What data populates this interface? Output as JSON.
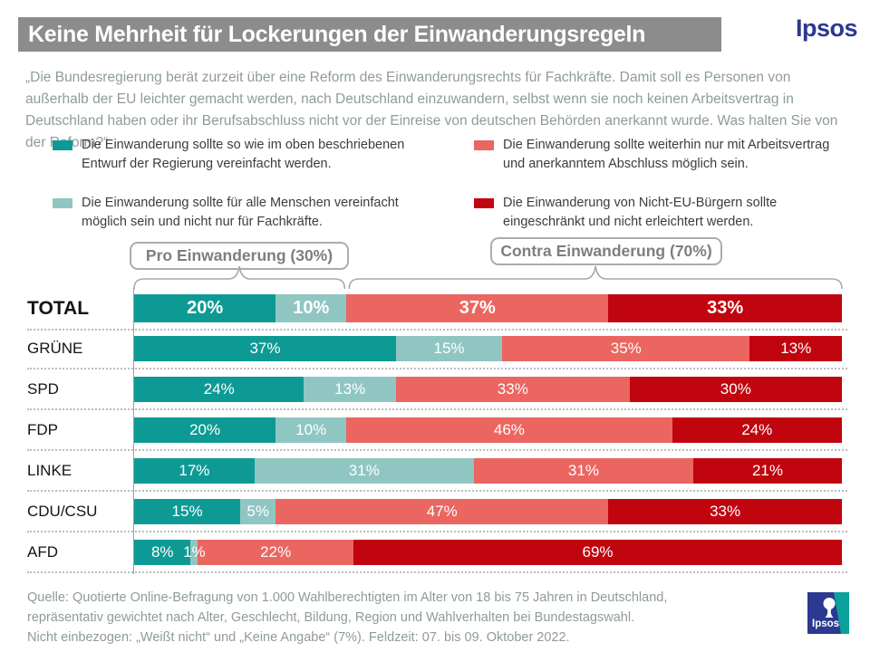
{
  "header": {
    "title": "Keine Mehrheit für Lockerungen der Einwanderungsregeln",
    "brand": "Ipsos"
  },
  "question": "„Die Bundesregierung berät zurzeit über eine Reform des Einwanderungsrechts für Fachkräfte. Damit soll es Personen von außerhalb der EU leichter gemacht werden, nach Deutschland einzuwandern, selbst wenn sie noch keinen Arbeitsvertrag in Deutschland haben oder ihr Berufsabschluss nicht vor der Einreise von deutschen Behörden anerkannt wurde. Was halten Sie von der Reform?“",
  "legend": {
    "items": [
      {
        "label": "Die Einwanderung sollte so wie im oben beschriebenen Entwurf der Regierung vereinfacht werden.",
        "color": "#0E9A94"
      },
      {
        "label": "Die Einwanderung sollte für alle Menschen vereinfacht möglich sein und nicht nur für Fachkräfte.",
        "color": "#90C6C2"
      },
      {
        "label": "Die Einwanderung sollte weiterhin nur mit Arbeitsvertrag und anerkanntem Abschluss möglich sein.",
        "color": "#EB6660"
      },
      {
        "label": "Die Einwanderung von Nicht-EU-Bürgern sollte eingeschränkt und nicht erleichtert werden.",
        "color": "#C1050F"
      }
    ]
  },
  "groups": {
    "pro": {
      "label": "Pro Einwanderung (30%)",
      "share_pct": 30
    },
    "contra": {
      "label": "Contra Einwanderung (70%)",
      "share_pct": 70
    }
  },
  "chart_data": {
    "type": "bar",
    "stacked": true,
    "unit": "%",
    "categories": [
      "TOTAL",
      "GRÜNE",
      "SPD",
      "FDP",
      "LINKE",
      "CDU/CSU",
      "AFD"
    ],
    "series": [
      {
        "name": "Die Einwanderung sollte so wie im oben beschriebenen Entwurf der Regierung vereinfacht werden.",
        "color": "#0E9A94",
        "values": [
          20,
          37,
          24,
          20,
          17,
          15,
          8
        ]
      },
      {
        "name": "Die Einwanderung sollte für alle Menschen vereinfacht möglich sein und nicht nur für Fachkräfte.",
        "color": "#90C6C2",
        "values": [
          10,
          15,
          13,
          10,
          31,
          5,
          1
        ]
      },
      {
        "name": "Die Einwanderung sollte weiterhin nur mit Arbeitsvertrag und anerkanntem Abschluss möglich sein.",
        "color": "#EB6660",
        "values": [
          37,
          35,
          33,
          46,
          31,
          47,
          22
        ]
      },
      {
        "name": "Die Einwanderung von Nicht-EU-Bürgern sollte eingeschränkt und nicht erleichtert werden.",
        "color": "#C1050F",
        "values": [
          33,
          13,
          30,
          24,
          21,
          33,
          69
        ]
      }
    ],
    "xlim": [
      0,
      100
    ],
    "grid": false,
    "legend_position": "top"
  },
  "source": {
    "lines": [
      "Quelle: Quotierte Online-Befragung von 1.000 Wahlberechtigten im Alter von 18 bis 75 Jahren in Deutschland,",
      "repräsentativ gewichtet nach Alter, Geschlecht, Bildung, Region und Wahlverhalten bei Bundestagswahl.",
      "Nicht einbezogen: „Weißt nicht“ und „Keine Angabe“ (7%). Feldzeit: 07. bis 09. Oktober 2022."
    ]
  },
  "footer_logo": "Ipsos"
}
